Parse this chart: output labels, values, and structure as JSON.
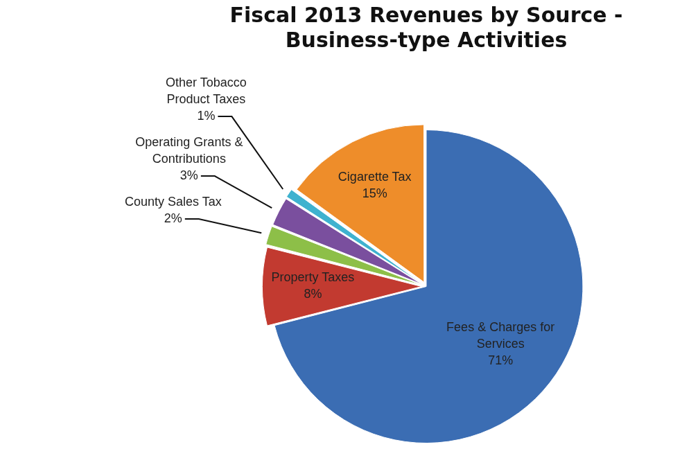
{
  "chart_data": {
    "type": "pie",
    "title": "Fiscal 2013 Revenues by Source - Business-type Activities",
    "categories": [
      "Fees & Charges for Services",
      "Property Taxes",
      "County Sales Tax",
      "Operating Grants & Contributions",
      "Other Tobacco Product Taxes",
      "Cigarette Tax"
    ],
    "values": [
      71,
      8,
      2,
      3,
      1,
      15
    ],
    "value_labels": [
      "71%",
      "8%",
      "2%",
      "3%",
      "1%",
      "15%"
    ],
    "colors": [
      "#3b6db3",
      "#c23a30",
      "#8dbf48",
      "#7a4f9e",
      "#3fb2cf",
      "#ee8d2a"
    ],
    "legend": false
  }
}
